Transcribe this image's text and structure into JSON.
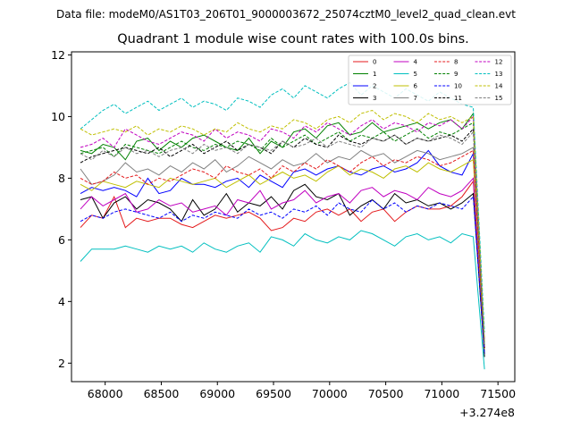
{
  "chart_data": {
    "type": "line",
    "suptitle": "Data file: modeM0/AS1T03_206T01_9000003672_25074cztM0_level2_quad_clean.evt",
    "title": "Quadrant 1 module wise count rates with 100.0s bins.",
    "xlabel": "",
    "ylabel": "",
    "x_offset_label": "+3.274e8",
    "xlim": [
      67700,
      71650
    ],
    "ylim": [
      1.4,
      12.1
    ],
    "x_ticks": [
      68000,
      68500,
      69000,
      69500,
      70000,
      70500,
      71000,
      71500
    ],
    "y_ticks": [
      2,
      4,
      6,
      8,
      10,
      12
    ],
    "x_tick_labels": [
      "68000",
      "68500",
      "69000",
      "69500",
      "70000",
      "70500",
      "71000",
      "71500"
    ],
    "y_tick_labels": [
      "2",
      "4",
      "6",
      "8",
      "10",
      "12"
    ],
    "x": [
      67780,
      67880,
      67980,
      68080,
      68180,
      68280,
      68380,
      68480,
      68580,
      68680,
      68780,
      68880,
      68980,
      69080,
      69180,
      69280,
      69380,
      69480,
      69580,
      69680,
      69780,
      69880,
      69980,
      70080,
      70180,
      70280,
      70380,
      70480,
      70580,
      70680,
      70780,
      70880,
      70980,
      71080,
      71180,
      71280,
      71380
    ],
    "series": [
      {
        "name": "0",
        "color": "#e41a1c",
        "dash": false,
        "values": [
          6.4,
          6.8,
          6.7,
          7.4,
          6.4,
          6.7,
          6.6,
          6.7,
          6.7,
          6.5,
          6.4,
          6.6,
          6.8,
          6.7,
          6.8,
          6.9,
          6.7,
          6.3,
          6.4,
          6.7,
          6.6,
          6.9,
          7.0,
          6.8,
          7.0,
          6.6,
          6.9,
          7.0,
          6.6,
          6.9,
          7.1,
          7.0,
          7.0,
          7.1,
          7.4,
          7.9,
          2.5
        ]
      },
      {
        "name": "1",
        "color": "#008000",
        "dash": false,
        "values": [
          8.9,
          8.8,
          9.1,
          9.0,
          8.6,
          9.2,
          9.3,
          8.9,
          9.2,
          9.0,
          9.3,
          9.4,
          9.2,
          9.0,
          8.9,
          9.3,
          8.8,
          9.2,
          9.0,
          9.5,
          9.6,
          9.3,
          9.7,
          9.8,
          9.4,
          9.5,
          9.8,
          9.5,
          9.6,
          9.7,
          9.8,
          9.6,
          9.8,
          9.9,
          9.6,
          10.1,
          2.6
        ]
      },
      {
        "name": "2",
        "color": "#0000ff",
        "dash": false,
        "values": [
          7.5,
          7.7,
          7.6,
          7.7,
          7.6,
          7.4,
          8.0,
          7.5,
          7.6,
          8.0,
          7.8,
          7.8,
          7.7,
          7.9,
          8.0,
          7.7,
          8.1,
          7.9,
          7.7,
          8.2,
          8.3,
          8.1,
          8.3,
          8.4,
          8.2,
          8.1,
          8.3,
          8.4,
          8.2,
          8.3,
          8.5,
          8.9,
          8.4,
          8.2,
          8.1,
          8.8,
          2.3
        ]
      },
      {
        "name": "3",
        "color": "#000000",
        "dash": false,
        "values": [
          7.3,
          7.4,
          6.7,
          7.2,
          7.4,
          7.0,
          7.3,
          7.2,
          7.0,
          6.6,
          7.3,
          6.8,
          7.0,
          7.5,
          6.9,
          7.2,
          7.1,
          7.4,
          7.0,
          7.6,
          7.8,
          7.4,
          7.3,
          7.5,
          6.8,
          7.1,
          7.3,
          7.0,
          7.5,
          7.2,
          7.3,
          7.1,
          7.2,
          7.0,
          7.2,
          7.5,
          2.2
        ]
      },
      {
        "name": "4",
        "color": "#c000c0",
        "dash": false,
        "values": [
          7.0,
          7.4,
          7.1,
          7.3,
          7.5,
          6.9,
          7.0,
          7.3,
          7.1,
          7.2,
          6.9,
          7.0,
          7.1,
          6.8,
          7.3,
          7.2,
          7.6,
          7.0,
          7.2,
          7.3,
          7.6,
          7.2,
          7.4,
          7.5,
          7.2,
          7.6,
          7.7,
          7.4,
          7.6,
          7.5,
          7.3,
          7.7,
          7.5,
          7.4,
          7.6,
          8.0,
          2.4
        ]
      },
      {
        "name": "5",
        "color": "#00bfbf",
        "dash": false,
        "values": [
          5.3,
          5.7,
          5.7,
          5.7,
          5.8,
          5.7,
          5.6,
          5.8,
          5.7,
          5.8,
          5.6,
          5.9,
          5.7,
          5.6,
          5.8,
          5.9,
          5.6,
          6.1,
          6.0,
          5.8,
          6.2,
          6.0,
          5.9,
          6.1,
          6.0,
          6.3,
          6.2,
          6.0,
          5.8,
          6.1,
          6.2,
          6.0,
          6.1,
          5.9,
          6.2,
          6.1,
          1.8
        ]
      },
      {
        "name": "6",
        "color": "#bfbf00",
        "dash": false,
        "values": [
          7.8,
          7.6,
          7.9,
          7.8,
          7.7,
          7.9,
          7.8,
          7.7,
          8.0,
          7.9,
          7.8,
          7.9,
          8.0,
          7.7,
          7.9,
          8.1,
          7.8,
          8.0,
          8.2,
          8.0,
          8.1,
          7.9,
          8.2,
          8.4,
          8.1,
          8.3,
          8.2,
          8.0,
          8.3,
          8.4,
          8.2,
          8.5,
          8.3,
          8.2,
          8.4,
          8.6,
          2.4
        ]
      },
      {
        "name": "7",
        "color": "#808080",
        "dash": false,
        "values": [
          8.3,
          7.8,
          7.9,
          8.1,
          8.5,
          8.2,
          8.3,
          8.1,
          8.4,
          8.2,
          8.5,
          8.3,
          8.6,
          8.2,
          8.4,
          8.7,
          8.5,
          8.3,
          8.6,
          8.4,
          8.5,
          8.8,
          8.5,
          8.7,
          8.6,
          8.9,
          8.7,
          8.8,
          8.5,
          8.7,
          8.9,
          8.8,
          8.6,
          8.7,
          8.8,
          9.0,
          2.5
        ]
      },
      {
        "name": "8",
        "color": "#e41a1c",
        "dash": true,
        "values": [
          8.0,
          7.8,
          7.9,
          8.2,
          8.0,
          8.1,
          7.8,
          8.0,
          7.9,
          8.1,
          8.3,
          8.2,
          8.0,
          8.4,
          8.2,
          8.1,
          8.3,
          8.0,
          8.4,
          8.2,
          8.5,
          8.3,
          8.6,
          8.4,
          8.2,
          8.5,
          8.7,
          8.4,
          8.6,
          8.5,
          8.7,
          8.6,
          8.4,
          8.5,
          8.7,
          8.9,
          2.5
        ]
      },
      {
        "name": "9",
        "color": "#008000",
        "dash": true,
        "values": [
          8.8,
          8.9,
          9.0,
          8.7,
          9.1,
          9.0,
          8.9,
          8.8,
          9.0,
          9.2,
          9.0,
          8.9,
          9.1,
          9.0,
          9.2,
          9.1,
          8.9,
          9.3,
          9.0,
          9.2,
          9.4,
          9.1,
          9.3,
          9.5,
          9.2,
          9.4,
          9.3,
          9.5,
          9.2,
          9.4,
          9.6,
          9.3,
          9.5,
          9.4,
          9.6,
          9.8,
          2.6
        ]
      },
      {
        "name": "10",
        "color": "#0000ff",
        "dash": true,
        "values": [
          6.6,
          6.8,
          6.7,
          6.9,
          7.0,
          6.9,
          6.8,
          6.7,
          6.9,
          6.6,
          6.8,
          6.7,
          6.9,
          6.8,
          6.7,
          7.0,
          6.8,
          6.9,
          6.7,
          7.0,
          6.9,
          7.1,
          6.8,
          7.2,
          7.0,
          6.9,
          7.3,
          7.0,
          7.2,
          6.9,
          7.1,
          7.0,
          7.2,
          7.1,
          7.0,
          7.4,
          2.3
        ]
      },
      {
        "name": "11",
        "color": "#000000",
        "dash": true,
        "values": [
          8.5,
          8.7,
          8.8,
          8.9,
          9.0,
          8.9,
          8.8,
          9.0,
          8.7,
          8.9,
          9.1,
          8.8,
          9.0,
          9.2,
          8.9,
          9.1,
          9.0,
          8.8,
          9.2,
          9.0,
          9.3,
          9.1,
          9.0,
          9.4,
          9.2,
          9.1,
          9.3,
          9.2,
          9.4,
          9.1,
          9.3,
          9.2,
          9.3,
          9.4,
          9.2,
          9.6,
          2.5
        ]
      },
      {
        "name": "12",
        "color": "#c000c0",
        "dash": true,
        "values": [
          9.0,
          9.1,
          9.3,
          9.0,
          9.6,
          9.4,
          9.2,
          9.1,
          9.3,
          9.5,
          9.4,
          9.2,
          9.6,
          9.3,
          9.5,
          9.4,
          9.2,
          9.6,
          9.5,
          9.3,
          9.7,
          9.5,
          9.8,
          9.6,
          9.4,
          9.7,
          9.9,
          9.6,
          9.8,
          9.7,
          9.5,
          9.8,
          9.7,
          9.9,
          9.6,
          10.0,
          2.7
        ]
      },
      {
        "name": "13",
        "color": "#00bfbf",
        "dash": true,
        "values": [
          9.6,
          9.9,
          10.2,
          10.4,
          10.1,
          10.3,
          10.5,
          10.2,
          10.4,
          10.6,
          10.3,
          10.5,
          10.4,
          10.2,
          10.6,
          10.5,
          10.3,
          10.7,
          10.9,
          10.6,
          11.0,
          10.8,
          10.6,
          10.9,
          11.1,
          10.7,
          11.0,
          10.8,
          10.6,
          10.9,
          10.7,
          10.5,
          10.8,
          10.6,
          10.4,
          10.3,
          3.0
        ]
      },
      {
        "name": "14",
        "color": "#bfbf00",
        "dash": true,
        "values": [
          9.6,
          9.4,
          9.5,
          9.6,
          9.5,
          9.7,
          9.4,
          9.6,
          9.5,
          9.7,
          9.6,
          9.4,
          9.6,
          9.5,
          9.8,
          9.6,
          9.5,
          9.7,
          9.6,
          9.9,
          9.8,
          9.6,
          9.9,
          10.0,
          9.8,
          10.1,
          10.2,
          9.9,
          10.1,
          10.0,
          9.8,
          10.1,
          9.9,
          10.0,
          9.8,
          10.0,
          2.7
        ]
      },
      {
        "name": "15",
        "color": "#808080",
        "dash": true,
        "values": [
          8.8,
          8.6,
          8.9,
          8.7,
          9.0,
          8.8,
          8.9,
          8.7,
          8.9,
          9.0,
          8.8,
          9.1,
          8.9,
          9.0,
          8.8,
          9.1,
          9.0,
          8.9,
          9.2,
          9.0,
          9.1,
          9.3,
          9.0,
          9.2,
          9.1,
          9.0,
          9.3,
          9.2,
          9.4,
          9.1,
          9.3,
          9.2,
          9.4,
          9.3,
          9.1,
          9.5,
          2.6
        ]
      }
    ]
  }
}
